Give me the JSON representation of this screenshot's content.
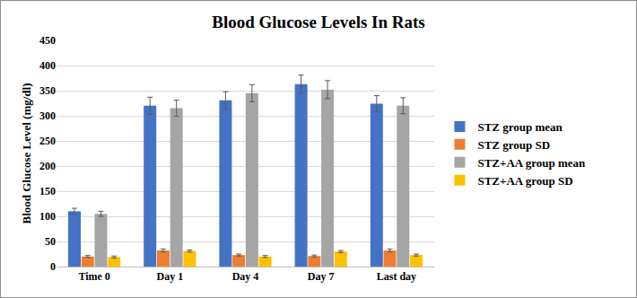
{
  "chart_data": {
    "type": "bar",
    "title": "Blood Glucose Levels In Rats",
    "y_label": "Blood Glucose Level (mg/dl)",
    "categories": [
      "Time 0",
      "Day 1",
      "Day 4",
      "Day 7",
      "Last day"
    ],
    "series": [
      {
        "name": "STZ group mean",
        "color": "#4472c4",
        "values": [
          110,
          320,
          331,
          363,
          324
        ],
        "errors": [
          6,
          17,
          17,
          18,
          16
        ]
      },
      {
        "name": "STZ group SD",
        "color": "#ed7d31",
        "values": [
          20,
          32,
          23,
          21,
          32
        ],
        "errors": [
          2,
          3,
          2,
          2,
          3
        ]
      },
      {
        "name": "STZ+AA group mean",
        "color": "#a5a5a5",
        "values": [
          105,
          315,
          345,
          352,
          320
        ],
        "errors": [
          5,
          16,
          17,
          18,
          16
        ]
      },
      {
        "name": "STZ+AA group SD",
        "color": "#ffc000",
        "values": [
          19,
          31,
          20,
          30,
          23
        ],
        "errors": [
          2,
          2,
          2,
          2,
          2
        ]
      }
    ],
    "ylim": [
      0,
      450
    ],
    "yticks": [
      0,
      50,
      100,
      150,
      200,
      250,
      300,
      350,
      400,
      450
    ],
    "grid": true,
    "legend": "right"
  }
}
